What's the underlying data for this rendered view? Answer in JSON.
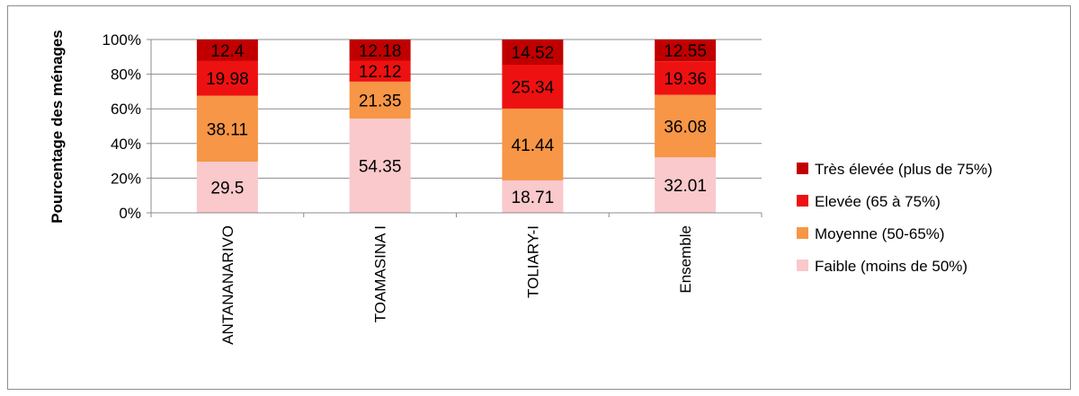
{
  "chart_data": {
    "type": "bar",
    "stacked": true,
    "percent_stacked": true,
    "title": "",
    "xlabel": "",
    "ylabel": "Pourcentage des ménages",
    "ylim": [
      0,
      100
    ],
    "yticks": [
      "0%",
      "20%",
      "40%",
      "60%",
      "80%",
      "100%"
    ],
    "grid": true,
    "legend_position": "right",
    "categories": [
      "ANTANANARIVO",
      "TOAMASINA I",
      "TOLIARY-I",
      "Ensemble"
    ],
    "series": [
      {
        "name": "Faible (moins de 50%)",
        "color": "#f9c9cc",
        "values": [
          29.5,
          54.35,
          18.71,
          32.01
        ]
      },
      {
        "name": "Moyenne (50-65%)",
        "color": "#f79646",
        "values": [
          38.11,
          21.35,
          41.44,
          36.08
        ]
      },
      {
        "name": "Elevée (65 à 75%)",
        "color": "#ee1111",
        "values": [
          19.98,
          12.12,
          25.34,
          19.36
        ]
      },
      {
        "name": "Très élevée (plus de 75%)",
        "color": "#c00000",
        "values": [
          12.4,
          12.18,
          14.52,
          12.55
        ]
      }
    ],
    "data_labels": [
      [
        "29.5",
        "54.35",
        "18.71",
        "32.01"
      ],
      [
        "38.11",
        "21.35",
        "41.44",
        "36.08"
      ],
      [
        "19.98",
        "12.12",
        "25.34",
        "19.36"
      ],
      [
        "12.4",
        "12.18",
        "14.52",
        "12.55"
      ]
    ]
  }
}
